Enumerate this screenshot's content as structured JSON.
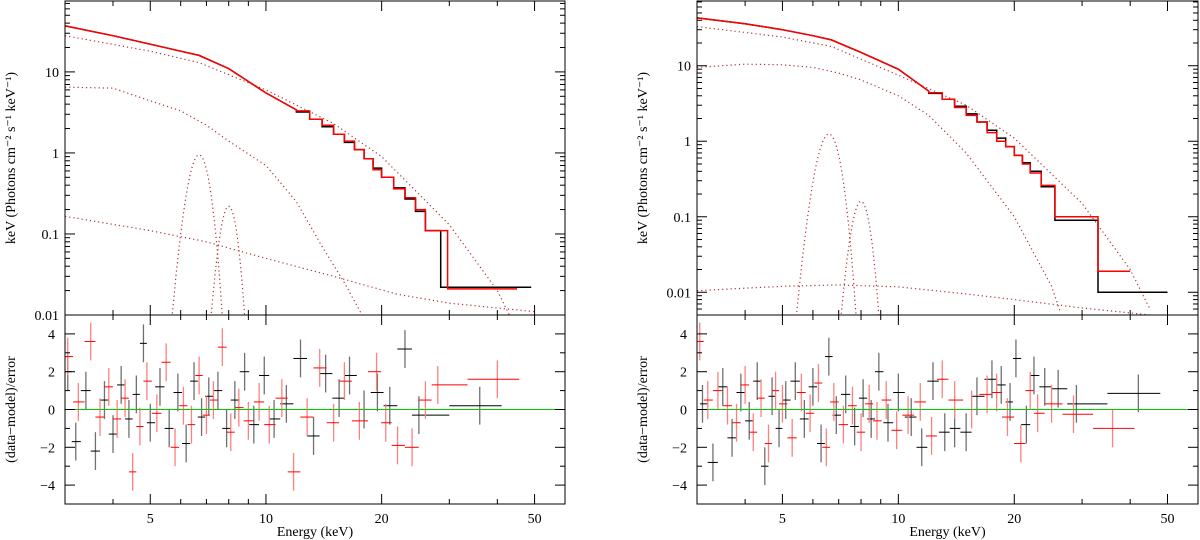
{
  "chart_data": [
    {
      "type": "line",
      "title": "",
      "xlabel": "Energy (keV)",
      "ylabel_top": "keV (Photons cm⁻² s⁻¹ keV⁻¹)",
      "ylabel_bottom": "(data−model)/error",
      "xscale": "log",
      "xlim": [
        3,
        60
      ],
      "ylim_top": [
        0.01,
        75
      ],
      "yscale_top": "log",
      "ylim_bottom": [
        -5,
        5
      ],
      "x_ticks": [
        {
          "v": 5,
          "label": "5"
        },
        {
          "v": 10,
          "label": "10"
        },
        {
          "v": 20,
          "label": "20"
        },
        {
          "v": 50,
          "label": "50"
        }
      ],
      "y_ticks_top": [
        {
          "v": 0.01,
          "label": "0.01"
        },
        {
          "v": 0.1,
          "label": "0.1"
        },
        {
          "v": 1,
          "label": "1"
        },
        {
          "v": 10,
          "label": "10"
        }
      ],
      "y_ticks_bottom": [
        {
          "v": -4,
          "label": "−4"
        },
        {
          "v": -2,
          "label": "−2"
        },
        {
          "v": 0,
          "label": "0"
        },
        {
          "v": 2,
          "label": "2"
        },
        {
          "v": 4,
          "label": "4"
        }
      ],
      "colors": {
        "series1": "#000000",
        "series2": "#ff0000",
        "components": "#b03030",
        "zero_line": "#00cc00",
        "red_err": "#ff8080",
        "black_err": "#707070"
      },
      "total_model_smooth": [
        [
          3,
          37
        ],
        [
          4,
          28
        ],
        [
          5,
          22
        ],
        [
          6,
          18
        ],
        [
          6.7,
          16
        ],
        [
          8,
          11
        ],
        [
          10,
          5.5
        ],
        [
          12,
          3.4
        ]
      ],
      "total_steps_black": {
        "edges": [
          12,
          13,
          14,
          15,
          16,
          17,
          18,
          19,
          20,
          21.5,
          23,
          24.5,
          26,
          28.5,
          49
        ],
        "values": [
          3.2,
          2.6,
          2.1,
          1.7,
          1.35,
          1.1,
          0.85,
          0.65,
          0.5,
          0.37,
          0.27,
          0.19,
          0.11,
          0.022
        ]
      },
      "total_steps_red": {
        "edges": [
          12,
          13,
          14,
          15,
          16,
          17,
          18,
          19,
          20,
          21.5,
          23,
          24.5,
          26,
          29.7,
          45
        ],
        "values": [
          3.3,
          2.6,
          2.2,
          1.7,
          1.4,
          1.1,
          0.85,
          0.62,
          0.5,
          0.36,
          0.28,
          0.2,
          0.11,
          0.021
        ]
      },
      "components": [
        {
          "kind": "points",
          "values": [
            [
              3,
              28
            ],
            [
              5,
              18
            ],
            [
              6.7,
              13
            ],
            [
              10,
              6
            ],
            [
              15,
              2.3
            ],
            [
              20,
              0.9
            ],
            [
              30,
              0.13
            ],
            [
              40,
              0.02
            ],
            [
              44,
              0.008
            ]
          ]
        },
        {
          "kind": "points",
          "values": [
            [
              3,
              6.5
            ],
            [
              4,
              6.3
            ],
            [
              5,
              4.4
            ],
            [
              6,
              3.3
            ],
            [
              7,
              2.2
            ],
            [
              8,
              1.4
            ],
            [
              10,
              0.7
            ],
            [
              12,
              0.25
            ],
            [
              14,
              0.07
            ],
            [
              16,
              0.025
            ],
            [
              18,
              0.009
            ]
          ]
        },
        {
          "kind": "gaussian",
          "center": 6.7,
          "peak": 0.95,
          "sigma": 0.33
        },
        {
          "kind": "gaussian",
          "center": 8.0,
          "peak": 0.22,
          "sigma": 0.32
        },
        {
          "kind": "points",
          "values": [
            [
              3,
              0.165
            ],
            [
              5,
              0.11
            ],
            [
              7,
              0.08
            ],
            [
              10,
              0.05
            ],
            [
              15,
              0.03
            ],
            [
              22,
              0.018
            ],
            [
              30,
              0.014
            ],
            [
              50,
              0.011
            ]
          ]
        }
      ],
      "residuals_black": [
        [
          3.05,
          2.0
        ],
        [
          3.2,
          -1.7
        ],
        [
          3.4,
          1.0
        ],
        [
          3.6,
          -2.2
        ],
        [
          3.8,
          0.5
        ],
        [
          4.0,
          -1.3
        ],
        [
          4.2,
          1.3
        ],
        [
          4.4,
          -0.5
        ],
        [
          4.6,
          0.8
        ],
        [
          4.8,
          3.5
        ],
        [
          5.0,
          -0.7
        ],
        [
          5.3,
          1.2
        ],
        [
          5.6,
          -1.0
        ],
        [
          5.9,
          0.9
        ],
        [
          6.2,
          -1.8
        ],
        [
          6.5,
          1.5
        ],
        [
          6.8,
          -0.4
        ],
        [
          7.1,
          0.7
        ],
        [
          7.5,
          1.0
        ],
        [
          7.9,
          -1.0
        ],
        [
          8.3,
          0.5
        ],
        [
          8.8,
          2.0
        ],
        [
          9.3,
          -0.8
        ],
        [
          9.9,
          1.8
        ],
        [
          10.5,
          -0.5
        ],
        [
          11.3,
          0.3
        ],
        [
          12.3,
          2.7
        ],
        [
          13.3,
          -1.4
        ],
        [
          14.3,
          1.9
        ],
        [
          15.5,
          0.6
        ],
        [
          16.5,
          1.8
        ],
        [
          18,
          0.0
        ],
        [
          19.5,
          0.9
        ],
        [
          21,
          0.2
        ],
        [
          23,
          3.2
        ],
        [
          25,
          -0.3
        ],
        [
          36,
          0.2
        ]
      ],
      "residuals_red": [
        [
          3.05,
          2.8
        ],
        [
          3.25,
          0.4
        ],
        [
          3.5,
          3.6
        ],
        [
          3.7,
          -0.4
        ],
        [
          3.9,
          1.2
        ],
        [
          4.1,
          -0.5
        ],
        [
          4.3,
          0.6
        ],
        [
          4.5,
          -3.3
        ],
        [
          4.7,
          -0.9
        ],
        [
          4.9,
          1.5
        ],
        [
          5.2,
          -0.2
        ],
        [
          5.5,
          2.5
        ],
        [
          5.8,
          -2.0
        ],
        [
          6.1,
          0.2
        ],
        [
          6.4,
          -0.8
        ],
        [
          6.7,
          1.8
        ],
        [
          7.0,
          -0.3
        ],
        [
          7.3,
          0.5
        ],
        [
          7.7,
          3.3
        ],
        [
          8.1,
          -1.2
        ],
        [
          8.5,
          0.1
        ],
        [
          9.0,
          -0.6
        ],
        [
          9.6,
          0.4
        ],
        [
          10.2,
          -0.8
        ],
        [
          11,
          0.6
        ],
        [
          11.8,
          -3.3
        ],
        [
          12.8,
          -0.4
        ],
        [
          13.8,
          2.2
        ],
        [
          15,
          -0.7
        ],
        [
          16,
          1.5
        ],
        [
          17.5,
          -0.6
        ],
        [
          19.4,
          2.0
        ],
        [
          20.5,
          -0.7
        ],
        [
          22,
          -1.9
        ],
        [
          24,
          -2.0
        ],
        [
          26,
          0.5
        ],
        [
          28,
          1.3
        ],
        [
          40,
          1.6
        ]
      ]
    },
    {
      "type": "line",
      "title": "",
      "xlabel": "Energy (keV)",
      "ylabel_top": "keV (Photons cm⁻² s⁻¹ keV⁻¹)",
      "ylabel_bottom": "(data−model)/error",
      "xscale": "log",
      "xlim": [
        3,
        60
      ],
      "ylim_top": [
        0.005,
        72
      ],
      "yscale_top": "log",
      "ylim_bottom": [
        -5,
        5
      ],
      "x_ticks": [
        {
          "v": 5,
          "label": "5"
        },
        {
          "v": 10,
          "label": "10"
        },
        {
          "v": 20,
          "label": "20"
        },
        {
          "v": 50,
          "label": "50"
        }
      ],
      "y_ticks_top": [
        {
          "v": 0.01,
          "label": "0.01"
        },
        {
          "v": 0.1,
          "label": "0.1"
        },
        {
          "v": 1,
          "label": "1"
        },
        {
          "v": 10,
          "label": "10"
        }
      ],
      "y_ticks_bottom": [
        {
          "v": -4,
          "label": "−4"
        },
        {
          "v": -2,
          "label": "−2"
        },
        {
          "v": 0,
          "label": "0"
        },
        {
          "v": 2,
          "label": "2"
        },
        {
          "v": 4,
          "label": "4"
        }
      ],
      "colors": {
        "series1": "#000000",
        "series2": "#ff0000",
        "components": "#b03030",
        "zero_line": "#00cc00",
        "red_err": "#ff8080",
        "black_err": "#707070"
      },
      "total_model_smooth": [
        [
          3,
          43
        ],
        [
          4,
          36
        ],
        [
          5,
          30
        ],
        [
          6,
          25
        ],
        [
          6.7,
          22
        ],
        [
          8,
          15
        ],
        [
          10,
          9
        ],
        [
          12,
          4.6
        ]
      ],
      "total_steps_black": {
        "edges": [
          12,
          13,
          14,
          15,
          16,
          17,
          18,
          19,
          20,
          21,
          22,
          23.5,
          25.5,
          33,
          50
        ],
        "values": [
          4.3,
          3.6,
          2.9,
          2.3,
          1.8,
          1.4,
          1.1,
          0.85,
          0.65,
          0.52,
          0.4,
          0.25,
          0.09,
          0.01
        ]
      },
      "total_steps_red": {
        "edges": [
          12,
          13,
          14,
          15,
          16,
          17,
          18,
          19,
          20,
          21,
          22,
          23.5,
          25.5,
          33,
          40
        ],
        "values": [
          4.4,
          3.6,
          2.8,
          2.2,
          1.8,
          1.3,
          1.0,
          0.85,
          0.65,
          0.5,
          0.38,
          0.26,
          0.1,
          0.019
        ]
      },
      "components": [
        {
          "kind": "points",
          "values": [
            [
              3,
              33
            ],
            [
              5,
              24
            ],
            [
              6.7,
              18
            ],
            [
              10,
              7.5
            ],
            [
              15,
              3
            ],
            [
              20,
              1.1
            ],
            [
              30,
              0.15
            ],
            [
              40,
              0.02
            ],
            [
              45,
              0.006
            ]
          ]
        },
        {
          "kind": "points",
          "values": [
            [
              3,
              9.5
            ],
            [
              4,
              10.5
            ],
            [
              5,
              10.3
            ],
            [
              6,
              9.5
            ],
            [
              7,
              8
            ],
            [
              8,
              6.5
            ],
            [
              10,
              4
            ],
            [
              12,
              2.2
            ],
            [
              15,
              0.7
            ],
            [
              20,
              0.1
            ],
            [
              25,
              0.012
            ],
            [
              26.5,
              0.005
            ]
          ]
        },
        {
          "kind": "gaussian",
          "center": 6.6,
          "peak": 1.25,
          "sigma": 0.35
        },
        {
          "kind": "gaussian",
          "center": 8.0,
          "peak": 0.16,
          "sigma": 0.34
        },
        {
          "kind": "points",
          "values": [
            [
              3,
              0.0105
            ],
            [
              5,
              0.012
            ],
            [
              7,
              0.0125
            ],
            [
              10,
              0.0118
            ],
            [
              15,
              0.0095
            ],
            [
              20,
              0.008
            ],
            [
              30,
              0.0062
            ],
            [
              45,
              0.005
            ]
          ]
        }
      ],
      "residuals_black": [
        [
          3.1,
          0.3
        ],
        [
          3.3,
          -2.8
        ],
        [
          3.5,
          1.2
        ],
        [
          3.7,
          -1.5
        ],
        [
          3.9,
          0.9
        ],
        [
          4.1,
          -0.6
        ],
        [
          4.3,
          1.5
        ],
        [
          4.5,
          -3.0
        ],
        [
          4.7,
          0.7
        ],
        [
          4.9,
          -1.0
        ],
        [
          5.1,
          0.5
        ],
        [
          5.4,
          1.5
        ],
        [
          5.7,
          -0.5
        ],
        [
          6.0,
          1.2
        ],
        [
          6.3,
          -1.8
        ],
        [
          6.6,
          2.8
        ],
        [
          6.9,
          -0.3
        ],
        [
          7.3,
          0.8
        ],
        [
          7.7,
          -0.9
        ],
        [
          8.1,
          0.6
        ],
        [
          8.5,
          -0.5
        ],
        [
          8.9,
          2.0
        ],
        [
          9.4,
          -0.7
        ],
        [
          10,
          0.9
        ],
        [
          10.8,
          -0.4
        ],
        [
          11.5,
          -2.0
        ],
        [
          12.3,
          1.5
        ],
        [
          13.2,
          -1.2
        ],
        [
          14,
          -1.0
        ],
        [
          15,
          -1.2
        ],
        [
          16,
          0.7
        ],
        [
          17.5,
          1.6
        ],
        [
          18.5,
          1.3
        ],
        [
          19.5,
          0.4
        ],
        [
          20.2,
          2.7
        ],
        [
          21.5,
          -0.8
        ],
        [
          22.5,
          1.8
        ],
        [
          24,
          1.2
        ],
        [
          26,
          1.1
        ],
        [
          29,
          0.3
        ],
        [
          42,
          0.85
        ]
      ],
      "residuals_red": [
        [
          3.05,
          3.6
        ],
        [
          3.2,
          0.5
        ],
        [
          3.4,
          1.0
        ],
        [
          3.6,
          0.2
        ],
        [
          3.8,
          -0.7
        ],
        [
          4.0,
          1.3
        ],
        [
          4.2,
          -1.2
        ],
        [
          4.4,
          0.6
        ],
        [
          4.6,
          -1.8
        ],
        [
          4.8,
          1.0
        ],
        [
          5.0,
          0.3
        ],
        [
          5.3,
          -1.5
        ],
        [
          5.6,
          0.9
        ],
        [
          5.9,
          -0.2
        ],
        [
          6.2,
          1.4
        ],
        [
          6.5,
          -2.0
        ],
        [
          6.8,
          0.4
        ],
        [
          7.2,
          -0.8
        ],
        [
          7.6,
          0.2
        ],
        [
          8.0,
          -1.2
        ],
        [
          8.4,
          0.3
        ],
        [
          8.8,
          -0.6
        ],
        [
          9.3,
          0.5
        ],
        [
          9.9,
          -1.1
        ],
        [
          10.6,
          -0.3
        ],
        [
          11.4,
          0.4
        ],
        [
          12.2,
          -1.4
        ],
        [
          13,
          1.6
        ],
        [
          14,
          0.5
        ],
        [
          15.5,
          0.0
        ],
        [
          17,
          0.8
        ],
        [
          18,
          0.9
        ],
        [
          19.2,
          -0.4
        ],
        [
          20.8,
          -1.8
        ],
        [
          22,
          1.0
        ],
        [
          23,
          -0.2
        ],
        [
          25,
          0.3
        ],
        [
          28.5,
          -0.25
        ],
        [
          36,
          -1.0
        ]
      ]
    }
  ]
}
